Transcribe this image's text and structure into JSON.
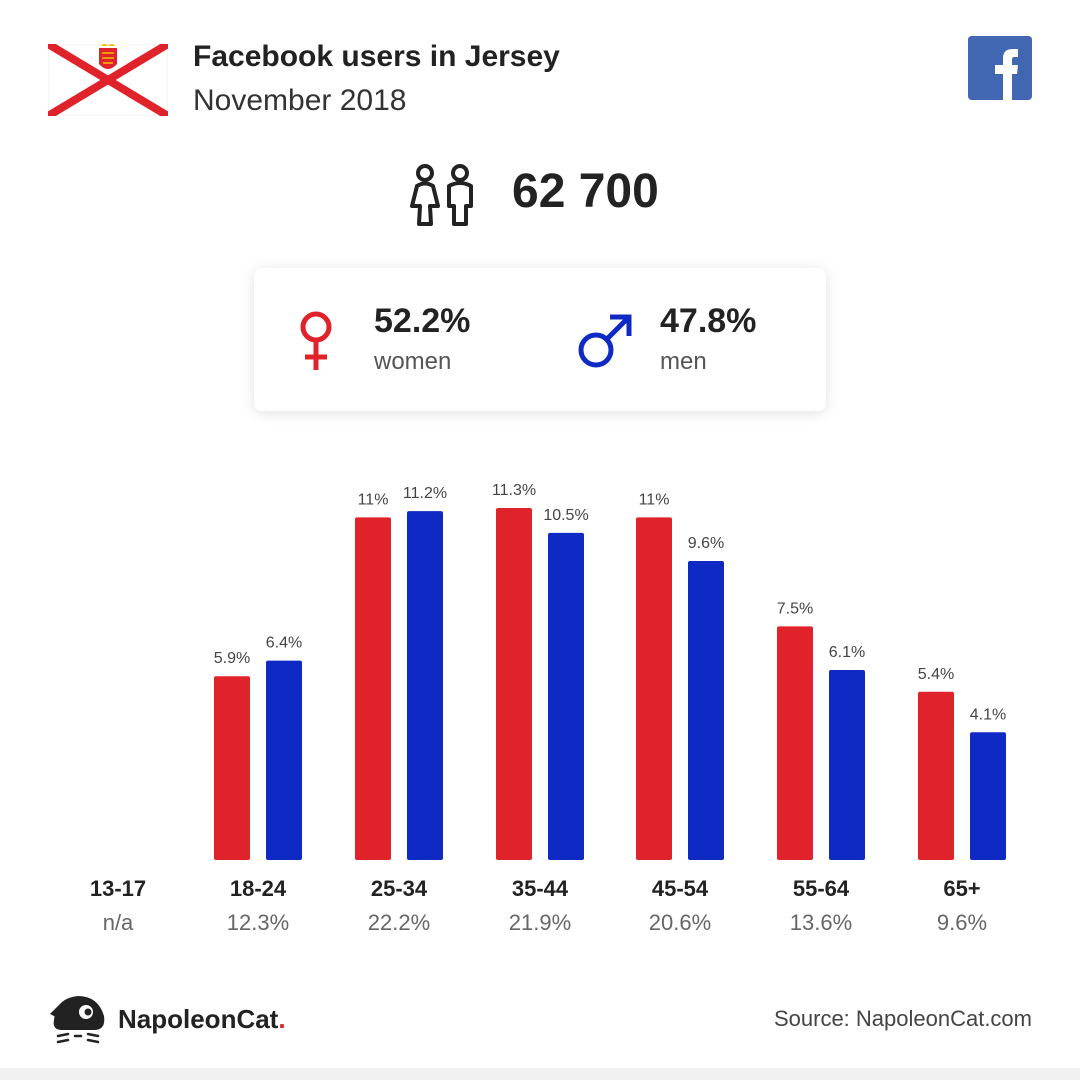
{
  "header": {
    "title": "Facebook users in Jersey",
    "subtitle": "November 2018"
  },
  "total": {
    "value": "62 700",
    "icon": "people-icon"
  },
  "gender": {
    "women": {
      "value": "52.2%",
      "label": "women",
      "icon": "female-icon",
      "color": "#e0222a"
    },
    "men": {
      "value": "47.8%",
      "label": "men",
      "icon": "male-icon",
      "color": "#0f2ac4"
    }
  },
  "colors": {
    "women": "#e0222a",
    "men": "#0f2ac4",
    "facebook": "#4267b2"
  },
  "chart_data": {
    "type": "bar",
    "categories": [
      "13-17",
      "18-24",
      "25-34",
      "35-44",
      "45-54",
      "55-64",
      "65+"
    ],
    "category_totals": [
      "n/a",
      "12.3%",
      "22.2%",
      "21.9%",
      "20.6%",
      "13.6%",
      "9.6%"
    ],
    "series": [
      {
        "values": [
          null,
          5.9,
          11,
          11.3,
          11,
          7.5,
          5.4
        ],
        "labels": [
          "",
          "5.9%",
          "11%",
          "11.3%",
          "11%",
          "7.5%",
          "5.4%"
        ]
      },
      {
        "values": [
          null,
          6.4,
          11.2,
          10.5,
          9.6,
          6.1,
          4.1
        ],
        "labels": [
          "",
          "6.4%",
          "11.2%",
          "10.5%",
          "9.6%",
          "6.1%",
          "4.1%"
        ]
      }
    ],
    "ylim": [
      0,
      11.3
    ]
  },
  "footer": {
    "brand": "NapoleonCat",
    "brand_dot": ".",
    "source": "Source: NapoleonCat.com"
  }
}
